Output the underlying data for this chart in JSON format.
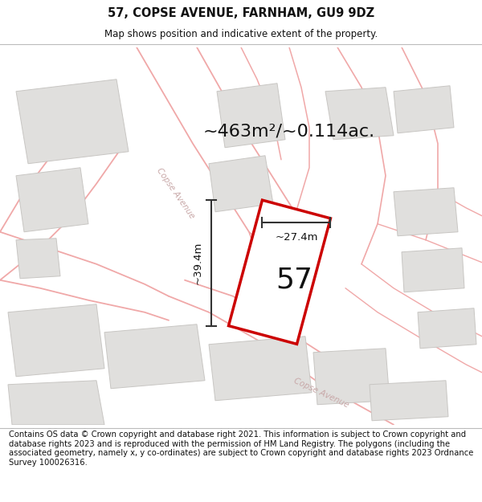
{
  "title": "57, COPSE AVENUE, FARNHAM, GU9 9DZ",
  "subtitle": "Map shows position and indicative extent of the property.",
  "footer": "Contains OS data © Crown copyright and database right 2021. This information is subject to Crown copyright and database rights 2023 and is reproduced with the permission of HM Land Registry. The polygons (including the associated geometry, namely x, y co-ordinates) are subject to Crown copyright and database rights 2023 Ordnance Survey 100026316.",
  "area_label": "~463m²/~0.114ac.",
  "width_label": "~27.4m",
  "height_label": "~39.4m",
  "number_label": "57",
  "map_bg": "#f7f6f4",
  "building_fill": "#e0dfdd",
  "building_edge": "#c8c6c3",
  "road_line_color": "#f0a8a8",
  "plot_outline_color": "#cc0000",
  "plot_fill": "#ffffff",
  "dim_line_color": "#333333",
  "title_fontsize": 10.5,
  "subtitle_fontsize": 8.5,
  "footer_fontsize": 7.2,
  "area_fontsize": 16,
  "number_fontsize": 26,
  "dim_fontsize": 9.5,
  "road_label_color": "#c8a8a8",
  "road_label_fontsize": 7.5
}
